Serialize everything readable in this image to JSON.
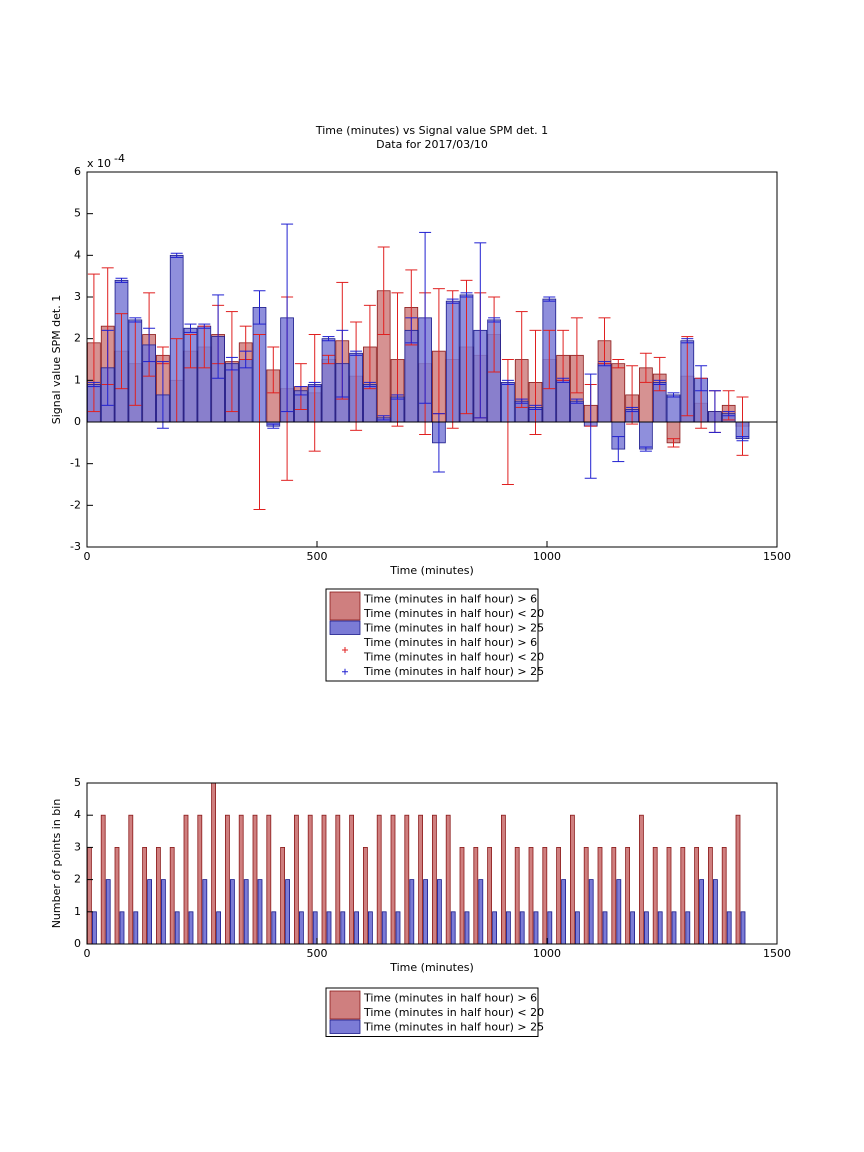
{
  "chart_data": [
    {
      "type": "bar",
      "title": "Time (minutes) vs Signal value SPM det. 1",
      "subtitle": "Data for 2017/03/10",
      "x_label": "Time (minutes)",
      "y_label": "Signal value SPM det. 1",
      "y_scale_base": "x 10",
      "y_scale_exponent": "-4",
      "x": [
        15,
        45,
        75,
        105,
        135,
        165,
        195,
        225,
        255,
        285,
        315,
        345,
        375,
        405,
        435,
        465,
        495,
        525,
        555,
        585,
        615,
        645,
        675,
        705,
        735,
        765,
        795,
        825,
        855,
        885,
        915,
        945,
        975,
        1005,
        1035,
        1065,
        1095,
        1125,
        1155,
        1185,
        1215,
        1245,
        1275,
        1305,
        1335,
        1365,
        1395,
        1425
      ],
      "xlim": [
        0,
        1500
      ],
      "xticks": [
        0,
        500,
        1000,
        1500
      ],
      "ylim": [
        -3,
        6
      ],
      "yticks": [
        -3,
        -2,
        -1,
        0,
        1,
        2,
        3,
        4,
        5,
        6
      ],
      "series": [
        {
          "name": "Time (minutes in half hour) > 6\nTime (minutes in half hour) < 20",
          "color": "#cf7f7f",
          "edge": "#8b1a1a",
          "error_color": "#e02020",
          "values": [
            1.9,
            2.3,
            1.7,
            1.4,
            2.1,
            1.6,
            1.0,
            1.7,
            1.8,
            2.1,
            1.45,
            1.9,
            0,
            1.25,
            0.8,
            0.85,
            0.7,
            1.5,
            1.95,
            1.1,
            1.8,
            3.15,
            1.5,
            2.75,
            1.4,
            1.7,
            1.5,
            1.8,
            1.6,
            2.1,
            0,
            1.5,
            0.95,
            1.5,
            1.6,
            1.6,
            0.4,
            1.95,
            1.4,
            0.65,
            1.3,
            1.15,
            -0.5,
            1.1,
            0.45,
            0.25,
            0.4,
            -0.1
          ],
          "errors": [
            1.65,
            1.4,
            0.9,
            1.0,
            1.0,
            0.2,
            1.0,
            0.4,
            0.5,
            0.7,
            1.2,
            0.4,
            2.1,
            0.55,
            2.2,
            0.55,
            1.4,
            0.1,
            1.4,
            1.3,
            1.0,
            1.05,
            1.6,
            0.9,
            1.7,
            1.5,
            1.65,
            1.6,
            1.5,
            0.9,
            1.5,
            1.15,
            1.25,
            0.7,
            0.6,
            0.9,
            0.5,
            0.55,
            0.1,
            0.7,
            0.35,
            0.4,
            0.1,
            0.95,
            0.6,
            0.5,
            0.35,
            0.7
          ]
        },
        {
          "name": "Time (minutes in half hour) > 25",
          "color": "#7b7bd6",
          "edge": "#1a1a8b",
          "error_color": "#2020d0",
          "values": [
            0.9,
            1.3,
            3.4,
            2.45,
            1.85,
            0.65,
            4.0,
            2.25,
            2.3,
            2.05,
            1.4,
            1.5,
            2.75,
            -0.1,
            2.5,
            0.75,
            0.9,
            2.0,
            1.4,
            1.65,
            0.9,
            0.1,
            0.6,
            2.2,
            2.5,
            -0.5,
            2.9,
            3.05,
            2.2,
            2.45,
            0.95,
            0.5,
            0.35,
            2.95,
            1.0,
            0.5,
            -0.1,
            1.4,
            -0.65,
            0.3,
            -0.65,
            0.95,
            0.65,
            1.95,
            1.05,
            0.25,
            0.2,
            -0.4
          ],
          "errors": [
            0.05,
            0.9,
            0.05,
            0.05,
            0.4,
            0.8,
            0.05,
            0.1,
            0.05,
            1.0,
            0.15,
            0.2,
            0.4,
            0.05,
            2.25,
            0.1,
            0.05,
            0.05,
            0.8,
            0.05,
            0.05,
            0.05,
            0.05,
            0.3,
            2.05,
            0.7,
            0.05,
            0.05,
            2.1,
            0.05,
            0.05,
            0.05,
            0.05,
            0.05,
            0.05,
            0.05,
            1.25,
            0.05,
            0.3,
            0.05,
            0.05,
            0.05,
            0.05,
            0.05,
            0.3,
            0.5,
            0.05,
            0.05
          ]
        }
      ]
    },
    {
      "type": "histogram",
      "x_label": "Time (minutes)",
      "y_label": "Number of points in bin",
      "x": [
        15,
        45,
        75,
        105,
        135,
        165,
        195,
        225,
        255,
        285,
        315,
        345,
        375,
        405,
        435,
        465,
        495,
        525,
        555,
        585,
        615,
        645,
        675,
        705,
        735,
        765,
        795,
        825,
        855,
        885,
        915,
        945,
        975,
        1005,
        1035,
        1065,
        1095,
        1125,
        1155,
        1185,
        1215,
        1245,
        1275,
        1305,
        1335,
        1365,
        1395,
        1425
      ],
      "xlim": [
        0,
        1500
      ],
      "xticks": [
        0,
        500,
        1000,
        1500
      ],
      "ylim": [
        0,
        5
      ],
      "yticks": [
        0,
        1,
        2,
        3,
        4,
        5
      ],
      "series": [
        {
          "name": "Time (minutes in half hour) > 6\nTime (minutes in half hour) < 20",
          "color": "#cf7f7f",
          "edge": "#8b1a1a",
          "values": [
            3,
            4,
            3,
            4,
            3,
            3,
            3,
            4,
            4,
            5,
            4,
            4,
            4,
            4,
            3,
            4,
            4,
            4,
            4,
            4,
            3,
            4,
            4,
            4,
            4,
            4,
            4,
            3,
            3,
            3,
            4,
            3,
            3,
            3,
            3,
            4,
            3,
            3,
            3,
            3,
            4,
            3,
            3,
            3,
            3,
            3,
            3,
            4
          ]
        },
        {
          "name": "Time (minutes in half hour) > 25",
          "color": "#7b7bd6",
          "edge": "#1a1a8b",
          "values": [
            1,
            2,
            1,
            1,
            2,
            2,
            1,
            1,
            2,
            1,
            2,
            2,
            2,
            1,
            2,
            1,
            1,
            1,
            1,
            1,
            1,
            1,
            1,
            2,
            2,
            2,
            1,
            1,
            2,
            1,
            1,
            1,
            1,
            1,
            2,
            1,
            2,
            1,
            2,
            1,
            1,
            1,
            1,
            1,
            2,
            2,
            1,
            1
          ]
        }
      ]
    }
  ]
}
